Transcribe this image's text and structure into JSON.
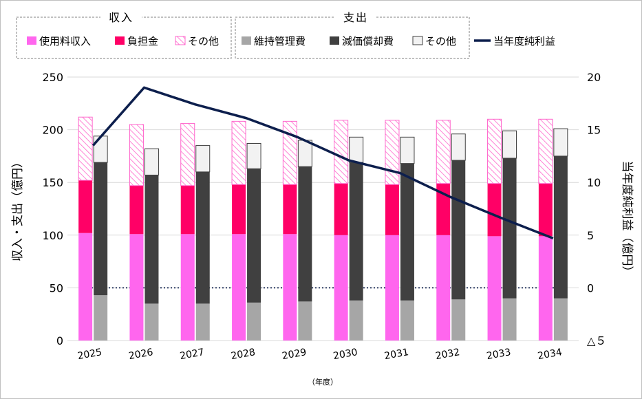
{
  "chart_data": {
    "type": "bar",
    "subtype": "stacked-bar-with-line-secondary-axis",
    "categories": [
      "2025",
      "2026",
      "2027",
      "2028",
      "2029",
      "2030",
      "2031",
      "2032",
      "2033",
      "2034"
    ],
    "xlabel": "（年度）",
    "ylabel_left": "収入・支出（億円）",
    "ylabel_right": "当年度純利益（億円）",
    "ylim_left": [
      0,
      250
    ],
    "ylim_right": [
      -5,
      20
    ],
    "yticks_left": [
      0,
      50,
      100,
      150,
      200,
      250
    ],
    "yticks_right": [
      -5,
      0,
      5,
      10,
      15,
      20
    ],
    "ytick_labels_left": [
      "0",
      "50",
      "100",
      "150",
      "200",
      "250"
    ],
    "ytick_labels_right": [
      "△５",
      "0",
      "5",
      "10",
      "15",
      "20"
    ],
    "legend_group_income": "収入",
    "legend_group_expense": "支出",
    "income_series": [
      {
        "name": "使用料収入",
        "color": "#ff66ee",
        "values": [
          102,
          101,
          101,
          101,
          101,
          100,
          100,
          100,
          99,
          99
        ]
      },
      {
        "name": "負担金",
        "color": "#ff0066",
        "values": [
          50,
          46,
          46,
          47,
          47,
          49,
          48,
          49,
          50,
          50
        ]
      },
      {
        "name": "その他",
        "color": "#ff66cc",
        "pattern": "hatched",
        "values": [
          60,
          58,
          59,
          60,
          60,
          60,
          61,
          60,
          61,
          61
        ]
      }
    ],
    "expense_series": [
      {
        "name": "維持管理費",
        "color": "#a6a6a6",
        "values": [
          43,
          35,
          35,
          36,
          37,
          38,
          38,
          39,
          40,
          40
        ]
      },
      {
        "name": "減価償却費",
        "color": "#404040",
        "values": [
          126,
          122,
          125,
          127,
          128,
          131,
          130,
          132,
          133,
          135
        ]
      },
      {
        "name": "その他",
        "color": "#f2f2f2",
        "values": [
          25,
          25,
          25,
          24,
          25,
          24,
          25,
          25,
          26,
          26
        ]
      }
    ],
    "line_series": {
      "name": "当年度純利益",
      "color": "#0d1f4d",
      "values": [
        13.5,
        19.0,
        17.4,
        16.1,
        14.3,
        12.1,
        10.9,
        8.6,
        6.6,
        4.7
      ]
    }
  }
}
